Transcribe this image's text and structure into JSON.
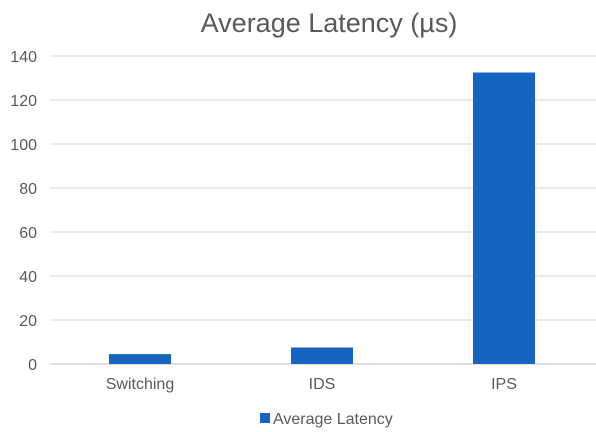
{
  "chart_data": {
    "type": "bar",
    "title": "Average Latency (µs)",
    "categories": [
      "Switching",
      "IDS",
      "IPS"
    ],
    "series": [
      {
        "name": "Average Latency",
        "values": [
          4.5,
          7.5,
          132.5
        ],
        "color": "#1565c0"
      }
    ],
    "xlabel": "",
    "ylabel": "",
    "ylim": [
      0,
      140
    ],
    "yticks": [
      0,
      20,
      40,
      60,
      80,
      100,
      120,
      140
    ],
    "grid": true,
    "legend_position": "bottom"
  }
}
